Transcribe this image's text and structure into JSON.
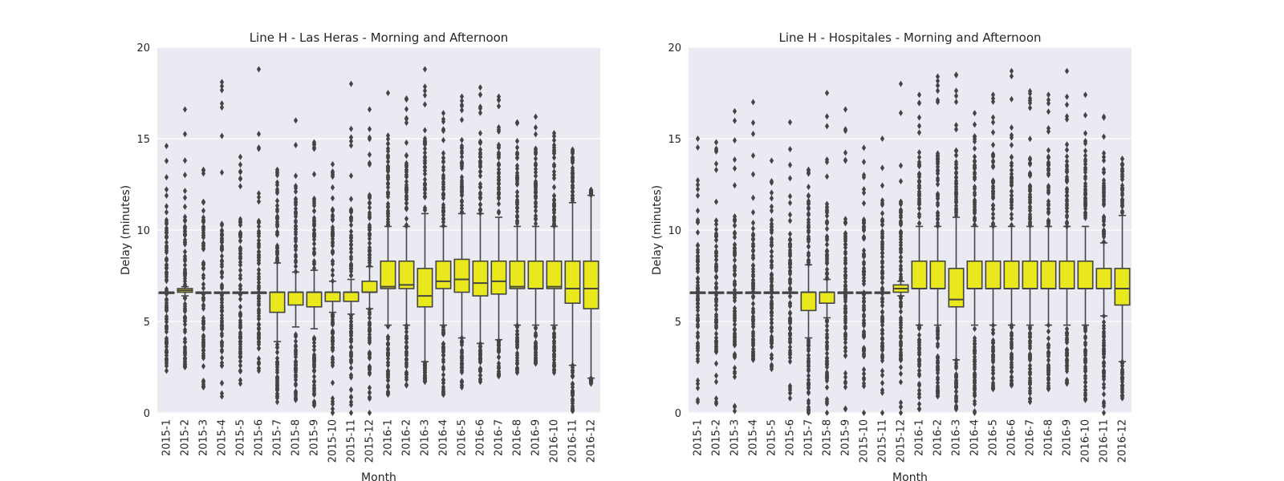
{
  "chart_data": [
    {
      "type": "box",
      "title": "Line H - Las Heras - Morning and Afternoon",
      "xlabel": "Month",
      "ylabel": "Delay (minutes)",
      "ylim": [
        0,
        20
      ],
      "yticks": [
        0,
        5,
        10,
        15,
        20
      ],
      "grid": true,
      "box_color": "#e8e81c",
      "categories": [
        "2015-1",
        "2015-2",
        "2015-3",
        "2015-4",
        "2015-5",
        "2015-6",
        "2015-7",
        "2015-8",
        "2015-9",
        "2015-10",
        "2015-11",
        "2015-12",
        "2016-1",
        "2016-2",
        "2016-3",
        "2016-4",
        "2016-5",
        "2016-6",
        "2016-7",
        "2016-8",
        "2016-9",
        "2016-10",
        "2016-11",
        "2016-12"
      ],
      "boxes": [
        {
          "q1": 6.6,
          "median": 6.6,
          "q3": 6.6,
          "whisker_low": 6.6,
          "whisker_high": 6.6,
          "outlier_range": [
            2.3,
            14.6
          ]
        },
        {
          "q1": 6.6,
          "median": 6.7,
          "q3": 6.8,
          "whisker_low": 6.4,
          "whisker_high": 6.9,
          "outlier_range": [
            2.5,
            16.6
          ]
        },
        {
          "q1": 6.6,
          "median": 6.6,
          "q3": 6.6,
          "whisker_low": 6.6,
          "whisker_high": 6.6,
          "outlier_range": [
            1.4,
            13.3
          ]
        },
        {
          "q1": 6.6,
          "median": 6.6,
          "q3": 6.6,
          "whisker_low": 6.6,
          "whisker_high": 6.6,
          "outlier_range": [
            0.9,
            18.1
          ]
        },
        {
          "q1": 6.6,
          "median": 6.6,
          "q3": 6.6,
          "whisker_low": 6.6,
          "whisker_high": 6.6,
          "outlier_range": [
            1.6,
            14.0
          ]
        },
        {
          "q1": 6.6,
          "median": 6.6,
          "q3": 6.6,
          "whisker_low": 6.6,
          "whisker_high": 6.6,
          "outlier_range": [
            2.3,
            18.8
          ]
        },
        {
          "q1": 5.5,
          "median": 6.6,
          "q3": 6.6,
          "whisker_low": 3.9,
          "whisker_high": 8.2,
          "outlier_range": [
            0.6,
            13.3
          ]
        },
        {
          "q1": 5.9,
          "median": 6.6,
          "q3": 6.6,
          "whisker_low": 4.7,
          "whisker_high": 7.7,
          "outlier_range": [
            0.7,
            16.0
          ]
        },
        {
          "q1": 5.8,
          "median": 6.6,
          "q3": 6.6,
          "whisker_low": 4.6,
          "whisker_high": 7.8,
          "outlier_range": [
            0.4,
            14.8
          ]
        },
        {
          "q1": 6.1,
          "median": 6.6,
          "q3": 6.6,
          "whisker_low": 5.5,
          "whisker_high": 7.2,
          "outlier_range": [
            0.0,
            13.6
          ]
        },
        {
          "q1": 6.1,
          "median": 6.6,
          "q3": 6.6,
          "whisker_low": 5.4,
          "whisker_high": 7.3,
          "outlier_range": [
            0.0,
            18.0
          ]
        },
        {
          "q1": 6.6,
          "median": 6.6,
          "q3": 7.2,
          "whisker_low": 5.7,
          "whisker_high": 8.0,
          "outlier_range": [
            0.0,
            16.6
          ]
        },
        {
          "q1": 6.8,
          "median": 6.9,
          "q3": 8.3,
          "whisker_low": 4.8,
          "whisker_high": 10.2,
          "outlier_range": [
            1.0,
            17.5
          ]
        },
        {
          "q1": 6.8,
          "median": 7.0,
          "q3": 8.3,
          "whisker_low": 4.8,
          "whisker_high": 10.2,
          "outlier_range": [
            1.5,
            17.2
          ]
        },
        {
          "q1": 5.8,
          "median": 6.4,
          "q3": 7.9,
          "whisker_low": 2.8,
          "whisker_high": 10.9,
          "outlier_range": [
            1.7,
            18.8
          ]
        },
        {
          "q1": 6.8,
          "median": 7.2,
          "q3": 8.3,
          "whisker_low": 4.8,
          "whisker_high": 10.2,
          "outlier_range": [
            1.0,
            16.4
          ]
        },
        {
          "q1": 6.6,
          "median": 7.3,
          "q3": 8.4,
          "whisker_low": 4.1,
          "whisker_high": 10.9,
          "outlier_range": [
            1.4,
            17.3
          ]
        },
        {
          "q1": 6.4,
          "median": 7.1,
          "q3": 8.3,
          "whisker_low": 3.8,
          "whisker_high": 10.9,
          "outlier_range": [
            1.7,
            17.8
          ]
        },
        {
          "q1": 6.5,
          "median": 7.2,
          "q3": 8.3,
          "whisker_low": 4.0,
          "whisker_high": 10.7,
          "outlier_range": [
            2.0,
            17.3
          ]
        },
        {
          "q1": 6.8,
          "median": 6.9,
          "q3": 8.3,
          "whisker_low": 4.8,
          "whisker_high": 10.2,
          "outlier_range": [
            2.2,
            15.9
          ]
        },
        {
          "q1": 6.8,
          "median": 6.8,
          "q3": 8.3,
          "whisker_low": 4.8,
          "whisker_high": 10.2,
          "outlier_range": [
            2.7,
            16.2
          ]
        },
        {
          "q1": 6.8,
          "median": 6.9,
          "q3": 8.3,
          "whisker_low": 4.8,
          "whisker_high": 10.2,
          "outlier_range": [
            2.2,
            15.3
          ]
        },
        {
          "q1": 6.0,
          "median": 6.8,
          "q3": 8.3,
          "whisker_low": 2.6,
          "whisker_high": 11.5,
          "outlier_range": [
            0.1,
            14.4
          ]
        },
        {
          "q1": 5.7,
          "median": 6.8,
          "q3": 8.3,
          "whisker_low": 1.9,
          "whisker_high": 11.9,
          "outlier_range": [
            1.6,
            12.2
          ]
        }
      ]
    },
    {
      "type": "box",
      "title": "Line H - Hospitales - Morning and Afternoon",
      "xlabel": "Month",
      "ylabel": "Delay (minutes)",
      "ylim": [
        0,
        20
      ],
      "yticks": [
        0,
        5,
        10,
        15,
        20
      ],
      "grid": true,
      "box_color": "#e8e81c",
      "categories": [
        "2015-1",
        "2015-2",
        "2015-3",
        "2015-4",
        "2015-5",
        "2015-6",
        "2015-7",
        "2015-8",
        "2015-9",
        "2015-10",
        "2015-11",
        "2015-12",
        "2016-1",
        "2016-2",
        "2016-3",
        "2016-4",
        "2016-5",
        "2016-6",
        "2016-7",
        "2016-8",
        "2016-9",
        "2016-10",
        "2016-11",
        "2016-12"
      ],
      "boxes": [
        {
          "q1": 6.6,
          "median": 6.6,
          "q3": 6.6,
          "whisker_low": 6.6,
          "whisker_high": 6.6,
          "outlier_range": [
            0.6,
            15.0
          ]
        },
        {
          "q1": 6.6,
          "median": 6.6,
          "q3": 6.6,
          "whisker_low": 6.6,
          "whisker_high": 6.6,
          "outlier_range": [
            0.5,
            14.8
          ]
        },
        {
          "q1": 6.6,
          "median": 6.6,
          "q3": 6.6,
          "whisker_low": 6.6,
          "whisker_high": 6.6,
          "outlier_range": [
            0.1,
            16.5
          ]
        },
        {
          "q1": 6.6,
          "median": 6.6,
          "q3": 6.6,
          "whisker_low": 6.6,
          "whisker_high": 6.6,
          "outlier_range": [
            2.9,
            17.0
          ]
        },
        {
          "q1": 6.6,
          "median": 6.6,
          "q3": 6.6,
          "whisker_low": 6.6,
          "whisker_high": 6.6,
          "outlier_range": [
            2.4,
            13.8
          ]
        },
        {
          "q1": 6.6,
          "median": 6.6,
          "q3": 6.6,
          "whisker_low": 6.6,
          "whisker_high": 6.6,
          "outlier_range": [
            0.8,
            15.9
          ]
        },
        {
          "q1": 5.6,
          "median": 6.6,
          "q3": 6.6,
          "whisker_low": 4.1,
          "whisker_high": 8.1,
          "outlier_range": [
            0.0,
            13.3
          ]
        },
        {
          "q1": 6.0,
          "median": 6.6,
          "q3": 6.6,
          "whisker_low": 5.2,
          "whisker_high": 7.3,
          "outlier_range": [
            0.0,
            17.5
          ]
        },
        {
          "q1": 6.6,
          "median": 6.6,
          "q3": 6.6,
          "whisker_low": 6.6,
          "whisker_high": 6.6,
          "outlier_range": [
            0.2,
            16.6
          ]
        },
        {
          "q1": 6.6,
          "median": 6.6,
          "q3": 6.6,
          "whisker_low": 6.6,
          "whisker_high": 6.6,
          "outlier_range": [
            0.0,
            14.5
          ]
        },
        {
          "q1": 6.6,
          "median": 6.6,
          "q3": 6.6,
          "whisker_low": 6.6,
          "whisker_high": 6.6,
          "outlier_range": [
            0.0,
            15.0
          ]
        },
        {
          "q1": 6.6,
          "median": 6.8,
          "q3": 7.0,
          "whisker_low": 6.4,
          "whisker_high": 7.2,
          "outlier_range": [
            0.0,
            18.0
          ]
        },
        {
          "q1": 6.8,
          "median": 6.8,
          "q3": 8.3,
          "whisker_low": 4.8,
          "whisker_high": 10.2,
          "outlier_range": [
            0.2,
            17.4
          ]
        },
        {
          "q1": 6.8,
          "median": 6.8,
          "q3": 8.3,
          "whisker_low": 4.8,
          "whisker_high": 10.2,
          "outlier_range": [
            0.9,
            18.4
          ]
        },
        {
          "q1": 5.8,
          "median": 6.2,
          "q3": 7.9,
          "whisker_low": 2.9,
          "whisker_high": 10.7,
          "outlier_range": [
            0.2,
            18.5
          ]
        },
        {
          "q1": 6.8,
          "median": 6.8,
          "q3": 8.3,
          "whisker_low": 4.8,
          "whisker_high": 10.2,
          "outlier_range": [
            0.0,
            16.4
          ]
        },
        {
          "q1": 6.8,
          "median": 6.8,
          "q3": 8.3,
          "whisker_low": 4.8,
          "whisker_high": 10.2,
          "outlier_range": [
            1.3,
            17.4
          ]
        },
        {
          "q1": 6.8,
          "median": 6.8,
          "q3": 8.3,
          "whisker_low": 4.8,
          "whisker_high": 10.2,
          "outlier_range": [
            1.5,
            18.7
          ]
        },
        {
          "q1": 6.8,
          "median": 6.8,
          "q3": 8.3,
          "whisker_low": 4.8,
          "whisker_high": 10.2,
          "outlier_range": [
            0.6,
            17.6
          ]
        },
        {
          "q1": 6.8,
          "median": 6.8,
          "q3": 8.3,
          "whisker_low": 4.8,
          "whisker_high": 10.2,
          "outlier_range": [
            1.3,
            17.4
          ]
        },
        {
          "q1": 6.8,
          "median": 6.8,
          "q3": 8.3,
          "whisker_low": 4.8,
          "whisker_high": 10.2,
          "outlier_range": [
            1.6,
            18.7
          ]
        },
        {
          "q1": 6.8,
          "median": 6.8,
          "q3": 8.3,
          "whisker_low": 4.8,
          "whisker_high": 10.2,
          "outlier_range": [
            0.7,
            17.4
          ]
        },
        {
          "q1": 6.8,
          "median": 6.8,
          "q3": 7.9,
          "whisker_low": 5.3,
          "whisker_high": 9.3,
          "outlier_range": [
            0.0,
            16.2
          ]
        },
        {
          "q1": 5.9,
          "median": 6.8,
          "q3": 7.9,
          "whisker_low": 2.8,
          "whisker_high": 10.8,
          "outlier_range": [
            0.8,
            13.9
          ]
        }
      ]
    }
  ]
}
